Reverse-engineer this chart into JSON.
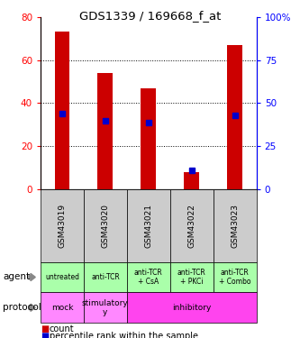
{
  "title": "GDS1339 / 169668_f_at",
  "samples": [
    "GSM43019",
    "GSM43020",
    "GSM43021",
    "GSM43022",
    "GSM43023"
  ],
  "counts": [
    73,
    54,
    47,
    8,
    67
  ],
  "percentile_ranks": [
    44,
    40,
    38.5,
    11,
    43
  ],
  "ylim_left": [
    0,
    80
  ],
  "ylim_right": [
    0,
    100
  ],
  "yticks_left": [
    0,
    20,
    40,
    60,
    80
  ],
  "yticks_right": [
    0,
    25,
    50,
    75,
    100
  ],
  "bar_color": "#cc0000",
  "dot_color": "#0000cc",
  "agent_labels": [
    "untreated",
    "anti-TCR",
    "anti-TCR\n+ CsA",
    "anti-TCR\n+ PKCi",
    "anti-TCR\n+ Combo"
  ],
  "agent_color": "#aaffaa",
  "protocol_data": [
    {
      "label": "mock",
      "start": 0,
      "end": 1,
      "color": "#ff88ff"
    },
    {
      "label": "stimulatory\ny",
      "start": 1,
      "end": 2,
      "color": "#ff88ff"
    },
    {
      "label": "inhibitory",
      "start": 2,
      "end": 5,
      "color": "#ff44ee"
    }
  ],
  "sample_box_color": "#cccccc",
  "legend_count_color": "#cc0000",
  "legend_dot_color": "#0000cc",
  "bar_width": 0.35
}
